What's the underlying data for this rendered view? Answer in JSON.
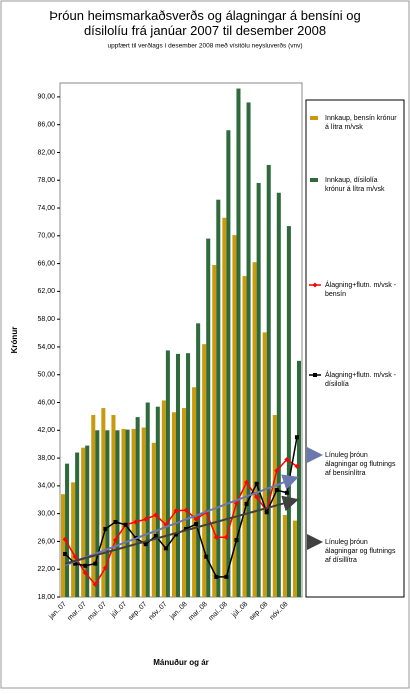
{
  "chart_data": {
    "type": "bar",
    "title": "Þróun heimsmarkaðsverðs og álagningar á bensíni og dísilolíu frá janúar 2007 til desember 2008",
    "subtitle": "uppfært til verðlags í desember 2008  með vísitölu neysluverðs (vnv)",
    "y_label": "Krónur",
    "x_label": "Mánuður og ár",
    "categories": [
      "jan..07",
      null,
      "mar..07",
      null,
      "maí..07",
      null,
      "júl..07",
      null,
      "sep..07",
      null,
      "nóv..07",
      null,
      "jan..08",
      null,
      "mar..08",
      null,
      "maí..08",
      null,
      "júl..08",
      null,
      "sep..08",
      null,
      "nóv..08",
      null
    ],
    "ylim": [
      18,
      92
    ],
    "yticks": [
      {
        "value": 18,
        "label": "18,00"
      },
      {
        "value": 22,
        "label": "22,00"
      },
      {
        "value": 26,
        "label": "26,00"
      },
      {
        "value": 30,
        "label": "30,00"
      },
      {
        "value": 34,
        "label": "34,00"
      },
      {
        "value": 38,
        "label": "38,00"
      },
      {
        "value": 42,
        "label": "42,00"
      },
      {
        "value": 46,
        "label": "46,00"
      },
      {
        "value": 50,
        "label": "50,00"
      },
      {
        "value": 54,
        "label": "54,00"
      },
      {
        "value": 58,
        "label": "58,00"
      },
      {
        "value": 62,
        "label": "62,00"
      },
      {
        "value": 66,
        "label": "66,00"
      },
      {
        "value": 70,
        "label": "70,00"
      },
      {
        "value": 74,
        "label": "74,00"
      },
      {
        "value": 78,
        "label": "78,00"
      },
      {
        "value": 82,
        "label": "82,00"
      },
      {
        "value": 86,
        "label": "86,00"
      },
      {
        "value": 90,
        "label": "90,00"
      }
    ],
    "series": [
      {
        "name": "Innkaup, bensín krónur á lítra m/vsk",
        "style": "bar",
        "color": "#c99a0e",
        "values": [
          32.8,
          34.5,
          39.5,
          44.2,
          45.2,
          44.2,
          42.2,
          42.2,
          42.4,
          40.2,
          46.3,
          44.6,
          45.2,
          48.2,
          54.4,
          65.8,
          72.6,
          70.1,
          64.2,
          66.2,
          56.1,
          44.2,
          29.8,
          29.0
        ]
      },
      {
        "name": "Innkaup, dísilolía krónur á lítra m/vsk",
        "style": "bar",
        "color": "#2f6a3c",
        "values": [
          37.2,
          38.8,
          39.8,
          42.0,
          42.0,
          42.0,
          42.1,
          43.9,
          46.0,
          45.4,
          53.5,
          53.0,
          53.1,
          57.4,
          69.6,
          75.2,
          85.2,
          91.2,
          89.2,
          77.6,
          80.2,
          76.2,
          71.4,
          52.0
        ]
      },
      {
        "name": "Álagning+flutn. m/vsk - bensín",
        "style": "line",
        "marker": "diamond",
        "color": "#ff0000",
        "values": [
          26.3,
          23.8,
          21.5,
          19.8,
          22.2,
          26.2,
          28.4,
          28.8,
          29.2,
          29.8,
          28.4,
          30.4,
          30.5,
          29.2,
          30.2,
          26.6,
          26.6,
          31.5,
          34.5,
          32.4,
          30.4,
          36.2,
          37.8,
          36.8
        ]
      },
      {
        "name": "Álagning+flutn. m/vsk - dísilolía",
        "style": "line",
        "marker": "square",
        "color": "#000000",
        "values": [
          24.2,
          22.8,
          22.5,
          22.8,
          27.8,
          28.8,
          28.4,
          26.5,
          25.6,
          26.8,
          25.0,
          27.0,
          27.8,
          28.5,
          23.8,
          20.9,
          20.9,
          26.2,
          31.4,
          34.3,
          30.2,
          33.4,
          33.0,
          41.0
        ]
      },
      {
        "name": "Línuleg þróun álagningar og flutnings af bensínlítra",
        "style": "trend",
        "color": "#6b78b0",
        "values": [
          22.6,
          23.1,
          23.7,
          24.2,
          24.8,
          25.3,
          25.9,
          26.4,
          27.0,
          27.5,
          28.1,
          28.6,
          29.2,
          29.7,
          30.3,
          30.8,
          31.4,
          31.9,
          32.5,
          33.0,
          33.6,
          34.1,
          34.7,
          35.2
        ]
      },
      {
        "name": "Línuleg þróun álagningar og flutnings af dísillítra",
        "style": "trend",
        "color": "#404040",
        "values": [
          22.8,
          23.2,
          23.6,
          24.0,
          24.4,
          24.8,
          25.2,
          25.6,
          26.0,
          26.4,
          26.8,
          27.2,
          27.6,
          28.0,
          28.4,
          28.8,
          29.2,
          29.6,
          30.0,
          30.4,
          30.8,
          31.2,
          31.6,
          32.0
        ]
      }
    ]
  }
}
